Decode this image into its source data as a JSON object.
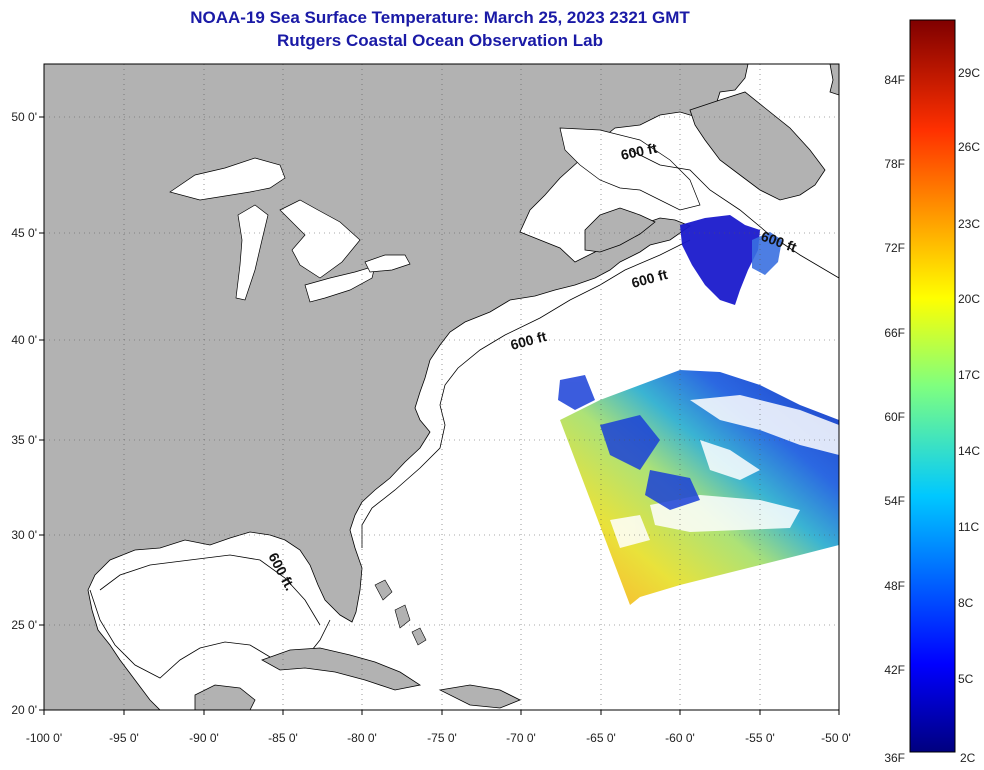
{
  "header": {
    "title": "NOAA-19 Sea Surface Temperature:  March 25, 2023 2321 GMT",
    "subtitle": "Rutgers Coastal Ocean Observation Lab"
  },
  "map": {
    "lon_labels": [
      "-100 0'",
      "-95 0'",
      "-90 0'",
      "-85 0'",
      "-80 0'",
      "-75 0'",
      "-70 0'",
      "-65 0'",
      "-60 0'",
      "-55 0'",
      "-50 0'"
    ],
    "lat_labels": [
      "50 0'",
      "45 0'",
      "40 0'",
      "35 0'",
      "30 0'",
      "25 0'",
      "20 0'"
    ],
    "depth_labels": [
      "600 ft",
      "600 ft",
      "600 ft",
      "600 ft",
      "600 ft."
    ],
    "colors": {
      "land": "#b2b2b2",
      "ocean": "#ffffff",
      "coast": "#000000",
      "grid": "#555555"
    }
  },
  "colorbar": {
    "fahrenheit": [
      "84F",
      "78F",
      "72F",
      "66F",
      "60F",
      "54F",
      "48F",
      "42F",
      "36F"
    ],
    "celsius": [
      "29C",
      "26C",
      "23C",
      "20C",
      "17C",
      "14C",
      "11C",
      "8C",
      "5C",
      "2C"
    ]
  }
}
